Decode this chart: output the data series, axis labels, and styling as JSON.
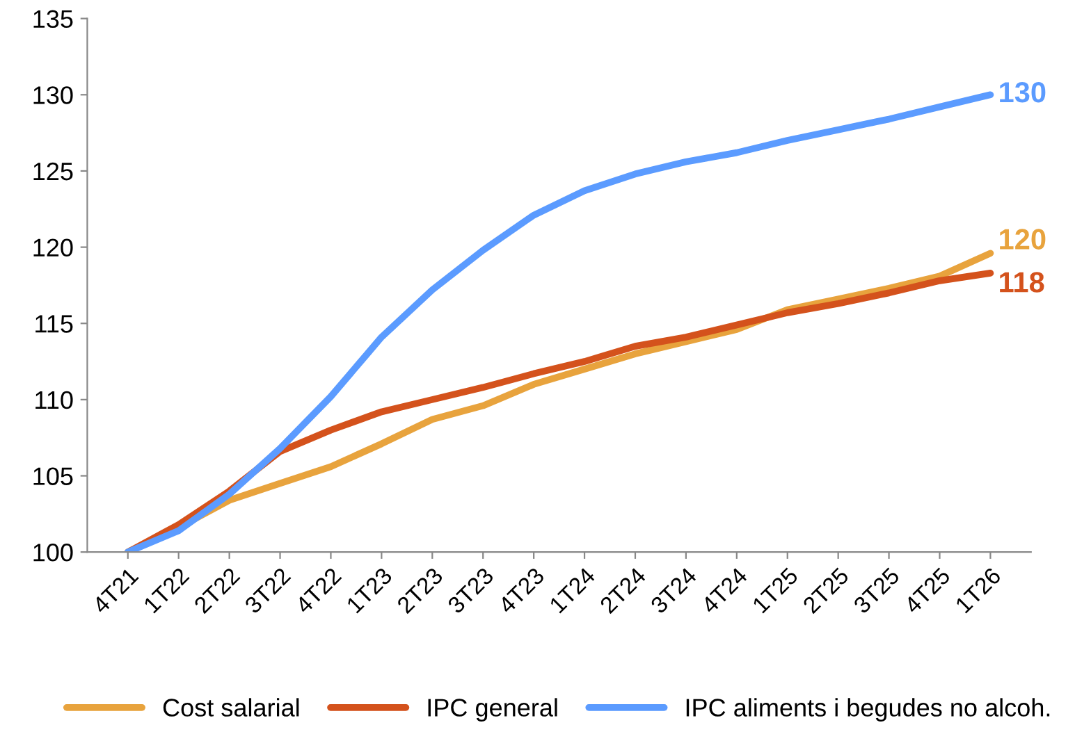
{
  "chart_data": {
    "type": "line",
    "categories": [
      "4T21",
      "1T22",
      "2T22",
      "3T22",
      "4T22",
      "1T23",
      "2T23",
      "3T23",
      "4T23",
      "1T24",
      "2T24",
      "3T24",
      "4T24",
      "1T25",
      "2T25",
      "3T25",
      "4T25",
      "1T26"
    ],
    "ylim": [
      100,
      135
    ],
    "yticks": [
      100,
      105,
      110,
      115,
      120,
      125,
      130,
      135
    ],
    "grid": false,
    "legend": "bottom",
    "marker": "none",
    "line_style": "solid",
    "series": [
      {
        "name": "Cost salarial",
        "color": "#e8a33d",
        "values": [
          100,
          101.6,
          103.4,
          104.5,
          105.6,
          107.1,
          108.7,
          109.6,
          111,
          112,
          113,
          113.8,
          114.6,
          115.9,
          116.6,
          117.3,
          118.1,
          119.6
        ],
        "value_labels": [
          null,
          null,
          null,
          null,
          null,
          null,
          null,
          null,
          null,
          null,
          null,
          null,
          null,
          null,
          null,
          null,
          null,
          "120"
        ]
      },
      {
        "name": "IPC general",
        "color": "#d4521c",
        "values": [
          100,
          101.8,
          104,
          106.6,
          108,
          109.2,
          110,
          110.8,
          111.7,
          112.5,
          113.5,
          114.1,
          114.9,
          115.7,
          116.3,
          117,
          117.8,
          118.3
        ],
        "value_labels": [
          null,
          null,
          null,
          null,
          null,
          null,
          null,
          null,
          null,
          null,
          null,
          null,
          null,
          null,
          null,
          null,
          null,
          "118"
        ]
      },
      {
        "name": "IPC aliments i begudes no alcoh.",
        "color": "#5b9bff",
        "values": [
          100,
          101.4,
          103.8,
          106.8,
          110.2,
          114.1,
          117.2,
          119.8,
          122.1,
          123.7,
          124.8,
          125.6,
          126.2,
          127,
          127.7,
          128.4,
          129.2,
          130
        ],
        "value_labels": [
          null,
          null,
          null,
          null,
          null,
          null,
          null,
          null,
          null,
          null,
          null,
          null,
          null,
          null,
          null,
          null,
          null,
          "130"
        ]
      }
    ]
  }
}
